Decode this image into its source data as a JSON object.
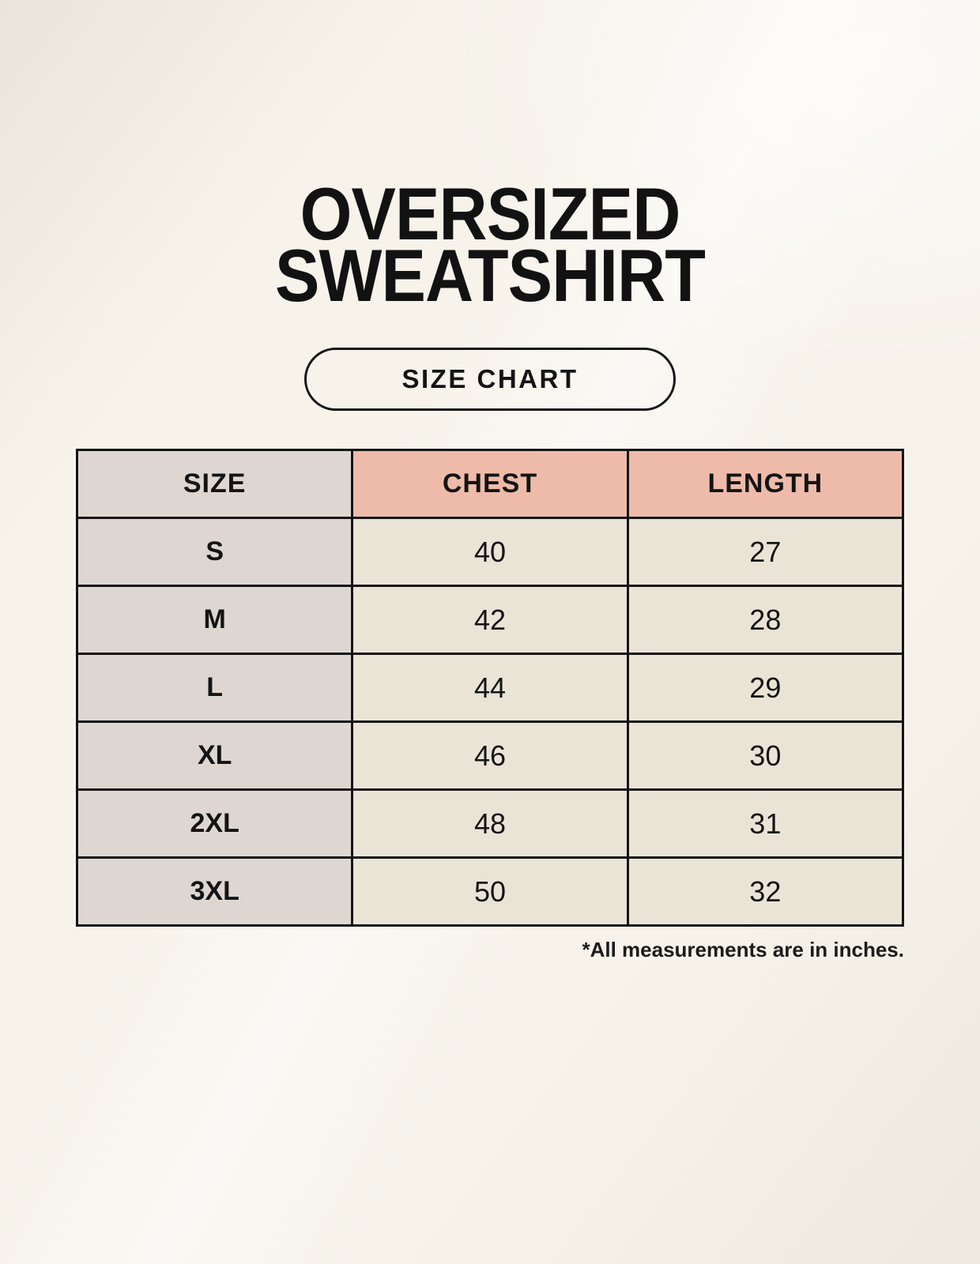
{
  "page": {
    "title_line1": "OVERSIZED",
    "title_line2": "SWEATSHIRT",
    "badge_label": "SIZE CHART",
    "footnote": "*All measurements are in inches."
  },
  "table": {
    "columns": [
      "SIZE",
      "CHEST",
      "LENGTH"
    ],
    "rows": [
      {
        "size": "S",
        "chest": "40",
        "length": "27"
      },
      {
        "size": "M",
        "chest": "42",
        "length": "28"
      },
      {
        "size": "L",
        "chest": "44",
        "length": "29"
      },
      {
        "size": "XL",
        "chest": "46",
        "length": "30"
      },
      {
        "size": "2XL",
        "chest": "48",
        "length": "31"
      },
      {
        "size": "3XL",
        "chest": "50",
        "length": "32"
      }
    ]
  },
  "chart_data": {
    "type": "table",
    "title": "OVERSIZED SWEATSHIRT SIZE CHART",
    "categories": [
      "S",
      "M",
      "L",
      "XL",
      "2XL",
      "3XL"
    ],
    "series": [
      {
        "name": "CHEST",
        "values": [
          40,
          42,
          44,
          46,
          48,
          50
        ]
      },
      {
        "name": "LENGTH",
        "values": [
          27,
          28,
          29,
          30,
          31,
          32
        ]
      }
    ],
    "units_note": "*All measurements are in inches."
  },
  "colors": {
    "background": "#f7f3eb",
    "size_column_bg": "#ded7d1",
    "header_accent_bg": "#eebbaa",
    "data_cell_bg": "#eae4d7",
    "border": "#141414",
    "text": "#141414"
  }
}
